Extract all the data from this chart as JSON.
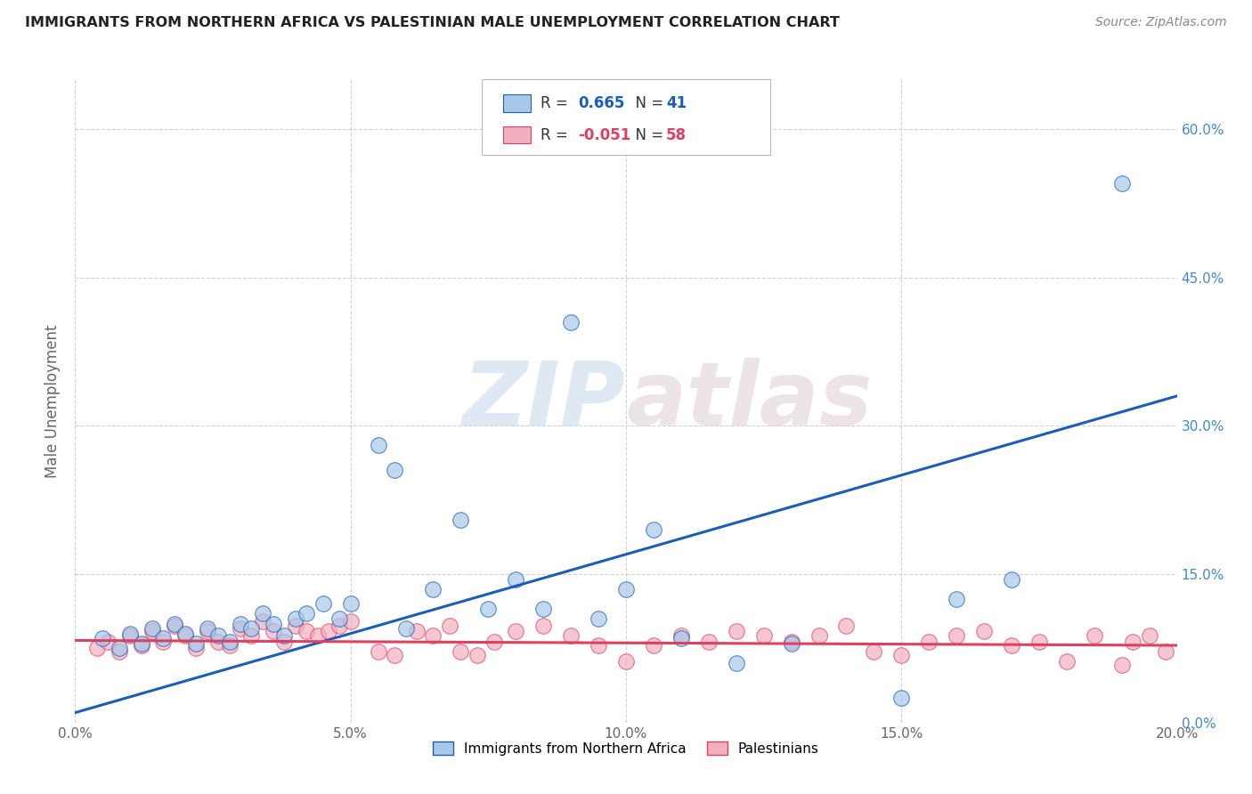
{
  "title": "IMMIGRANTS FROM NORTHERN AFRICA VS PALESTINIAN MALE UNEMPLOYMENT CORRELATION CHART",
  "source": "Source: ZipAtlas.com",
  "ylabel": "Male Unemployment",
  "xlim": [
    0.0,
    0.2
  ],
  "ylim": [
    0.0,
    0.65
  ],
  "legend_label_blue": "Immigrants from Northern Africa",
  "legend_label_pink": "Palestinians",
  "legend_r_blue": "0.665",
  "legend_n_blue": "41",
  "legend_r_pink": "-0.051",
  "legend_n_pink": "58",
  "blue_color": "#a8c8e8",
  "pink_color": "#f0b0c0",
  "blue_line_color": "#1a5eb8",
  "pink_line_color": "#e04060",
  "watermark_zip": "ZIP",
  "watermark_atlas": "atlas",
  "grid_color": "#cccccc",
  "background_color": "#ffffff",
  "blue_scatter_x": [
    0.005,
    0.008,
    0.01,
    0.012,
    0.014,
    0.016,
    0.018,
    0.02,
    0.022,
    0.024,
    0.026,
    0.028,
    0.03,
    0.032,
    0.034,
    0.036,
    0.038,
    0.04,
    0.042,
    0.045,
    0.048,
    0.05,
    0.055,
    0.058,
    0.06,
    0.065,
    0.07,
    0.075,
    0.08,
    0.085,
    0.09,
    0.095,
    0.1,
    0.105,
    0.11,
    0.12,
    0.13,
    0.15,
    0.16,
    0.17,
    0.19
  ],
  "blue_scatter_y": [
    0.085,
    0.075,
    0.09,
    0.08,
    0.095,
    0.085,
    0.1,
    0.09,
    0.08,
    0.095,
    0.088,
    0.082,
    0.1,
    0.095,
    0.11,
    0.1,
    0.088,
    0.105,
    0.11,
    0.12,
    0.105,
    0.12,
    0.28,
    0.255,
    0.095,
    0.135,
    0.205,
    0.115,
    0.145,
    0.115,
    0.405,
    0.105,
    0.135,
    0.195,
    0.085,
    0.06,
    0.08,
    0.025,
    0.125,
    0.145,
    0.545
  ],
  "pink_scatter_x": [
    0.004,
    0.006,
    0.008,
    0.01,
    0.012,
    0.014,
    0.016,
    0.018,
    0.02,
    0.022,
    0.024,
    0.026,
    0.028,
    0.03,
    0.032,
    0.034,
    0.036,
    0.038,
    0.04,
    0.042,
    0.044,
    0.046,
    0.048,
    0.05,
    0.055,
    0.058,
    0.062,
    0.065,
    0.068,
    0.07,
    0.073,
    0.076,
    0.08,
    0.085,
    0.09,
    0.095,
    0.1,
    0.105,
    0.11,
    0.115,
    0.12,
    0.125,
    0.13,
    0.135,
    0.14,
    0.145,
    0.15,
    0.155,
    0.16,
    0.165,
    0.17,
    0.175,
    0.18,
    0.185,
    0.19,
    0.192,
    0.195,
    0.198
  ],
  "pink_scatter_y": [
    0.075,
    0.082,
    0.072,
    0.088,
    0.078,
    0.092,
    0.082,
    0.098,
    0.088,
    0.075,
    0.092,
    0.082,
    0.078,
    0.095,
    0.088,
    0.102,
    0.092,
    0.082,
    0.098,
    0.092,
    0.088,
    0.092,
    0.098,
    0.102,
    0.072,
    0.068,
    0.092,
    0.088,
    0.098,
    0.072,
    0.068,
    0.082,
    0.092,
    0.098,
    0.088,
    0.078,
    0.062,
    0.078,
    0.088,
    0.082,
    0.092,
    0.088,
    0.082,
    0.088,
    0.098,
    0.072,
    0.068,
    0.082,
    0.088,
    0.092,
    0.078,
    0.082,
    0.062,
    0.088,
    0.058,
    0.082,
    0.088,
    0.072
  ],
  "blue_line_x": [
    0.0,
    0.2
  ],
  "blue_line_y": [
    0.01,
    0.33
  ],
  "pink_line_x": [
    0.0,
    0.2
  ],
  "pink_line_y": [
    0.083,
    0.078
  ]
}
